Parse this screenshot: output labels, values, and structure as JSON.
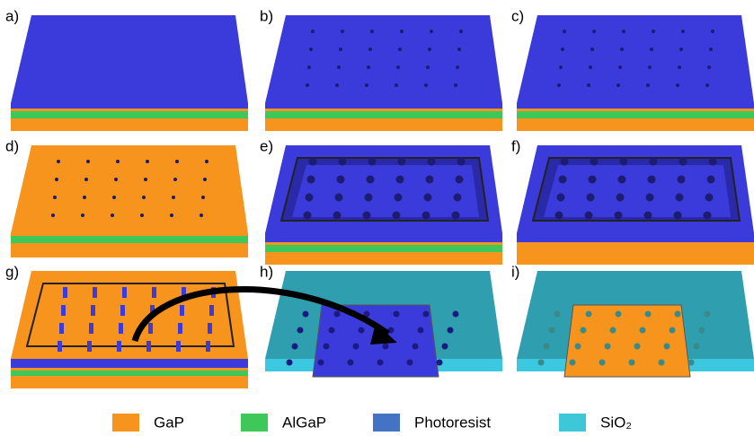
{
  "panels": [
    {
      "label": "a)"
    },
    {
      "label": "b)"
    },
    {
      "label": "c)"
    },
    {
      "label": "d)"
    },
    {
      "label": "e)"
    },
    {
      "label": "f)"
    },
    {
      "label": "g)"
    },
    {
      "label": "h)"
    },
    {
      "label": "i)"
    }
  ],
  "legend": [
    {
      "label": "GaP",
      "color": "#f7941d"
    },
    {
      "label": "AlGaP",
      "color": "#3ec85a"
    },
    {
      "label": "Photoresist",
      "color": "#4472c4"
    },
    {
      "label": "SiO₂",
      "color": "#3cc8d8"
    }
  ]
}
